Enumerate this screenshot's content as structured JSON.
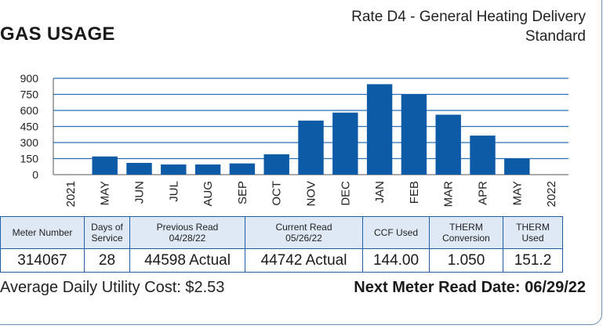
{
  "header": {
    "title": "GAS USAGE",
    "rate_line1": "Rate D4 - General Heating Delivery",
    "rate_line2": "Standard"
  },
  "chart_data": {
    "type": "bar",
    "title": "",
    "xlabel": "",
    "ylabel": "",
    "categories": [
      "2021",
      "MAY",
      "JUN",
      "JUL",
      "AUG",
      "SEP",
      "OCT",
      "NOV",
      "DEC",
      "JAN",
      "FEB",
      "MAR",
      "APR",
      "MAY",
      "2022"
    ],
    "values": [
      0,
      170,
      110,
      95,
      95,
      105,
      190,
      505,
      580,
      845,
      750,
      560,
      365,
      150,
      0
    ],
    "yticks": [
      0,
      150,
      300,
      450,
      600,
      750,
      900
    ],
    "ylim": [
      0,
      900
    ],
    "grid": true,
    "bar_color": "#0d5aa7",
    "grid_color": "#2a6fb8"
  },
  "table": {
    "headers": [
      [
        "Meter Number"
      ],
      [
        "Days of",
        "Service"
      ],
      [
        "Previous Read",
        "04/28/22"
      ],
      [
        "Current Read",
        "05/26/22"
      ],
      [
        "CCF Used"
      ],
      [
        "THERM",
        "Conversion"
      ],
      [
        "THERM",
        "Used"
      ]
    ],
    "values": [
      "314067",
      "28",
      "44598 Actual",
      "44742 Actual",
      "144.00",
      "1.050",
      "151.2"
    ],
    "header_bg": "#dfe9f5",
    "border_color": "#1f5ea6"
  },
  "footer": {
    "avg_cost_label": "Average Daily Utility Cost: $2.53",
    "next_read_label": "Next Meter Read Date: 06/29/22"
  }
}
